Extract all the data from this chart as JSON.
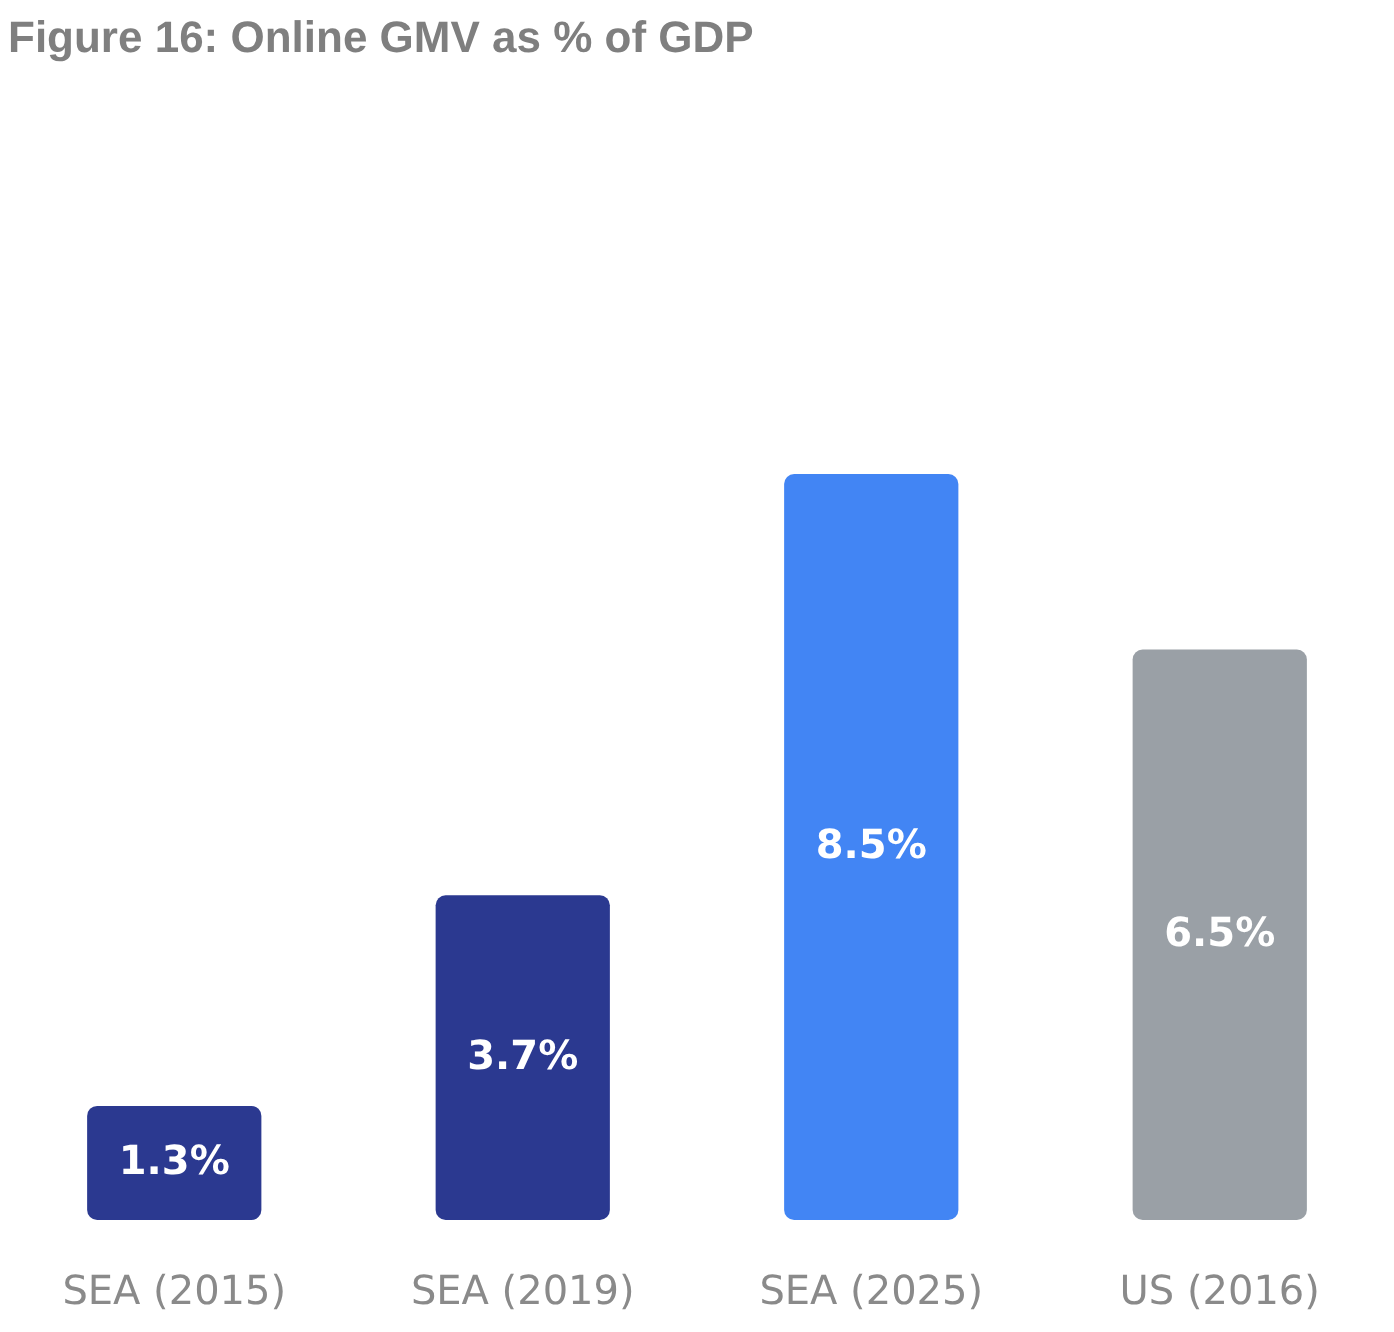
{
  "chart_data": {
    "type": "bar",
    "title": "Figure 16: Online GMV as % of GDP",
    "categories": [
      "SEA (2015)",
      "SEA (2019)",
      "SEA (2025)",
      "US (2016)"
    ],
    "values": [
      1.3,
      3.7,
      8.5,
      6.5
    ],
    "colors": [
      "#2b3990",
      "#2b3990",
      "#4285f4",
      "#9aa0a6"
    ],
    "value_labels": [
      "1.3%",
      "3.7%",
      "8.5%",
      "6.5%"
    ],
    "tick_labels": "x"
  }
}
